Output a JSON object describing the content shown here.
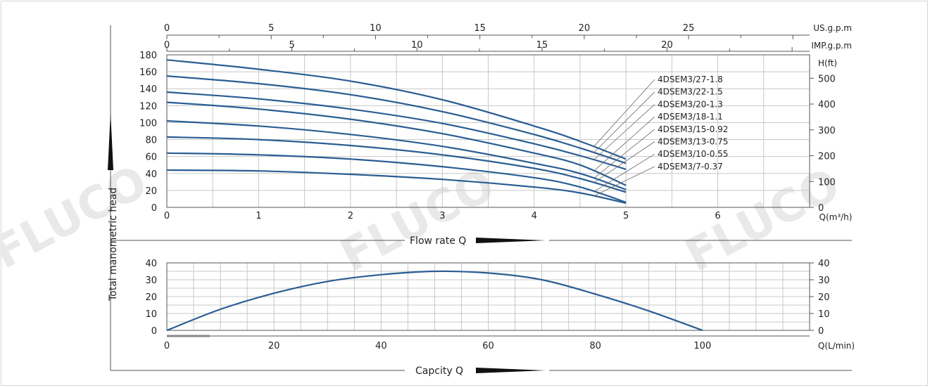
{
  "chart_data": [
    {
      "type": "line",
      "name": "head-curves",
      "x_axis": {
        "label": "Q(m³/h)",
        "ticks": [
          "0",
          "1",
          "2",
          "3",
          "4",
          "5",
          "6"
        ],
        "range": [
          0,
          7
        ]
      },
      "x_top_us": {
        "label": "US.g.p.m",
        "ticks": [
          "0",
          "5",
          "10",
          "15",
          "20",
          "25"
        ],
        "range": [
          0,
          30.8
        ]
      },
      "x_top_imp": {
        "label": "IMP.g.p.m",
        "ticks": [
          "0",
          "5",
          "10",
          "15",
          "20"
        ],
        "range": [
          0,
          25.7
        ]
      },
      "y_axis": {
        "label": "Total manometric head",
        "ticks": [
          "0",
          "20",
          "40",
          "60",
          "80",
          "100",
          "120",
          "140",
          "160",
          "180"
        ],
        "range": [
          0,
          180
        ]
      },
      "y_right": {
        "label": "H(ft)",
        "ticks": [
          "0",
          "100",
          "200",
          "300",
          "400",
          "500"
        ],
        "range": [
          0,
          590.6
        ]
      },
      "series": [
        {
          "name": "4DSEM3/27-1.8",
          "x": [
            0,
            1,
            2,
            3,
            4,
            4.5,
            5
          ],
          "y": [
            174,
            163,
            149,
            127,
            96,
            78,
            57
          ]
        },
        {
          "name": "4DSEM3/22-1.5",
          "x": [
            0,
            1,
            2,
            3,
            4,
            4.5,
            5
          ],
          "y": [
            155,
            146,
            133,
            113,
            86,
            70,
            52
          ]
        },
        {
          "name": "4DSEM3/20-1.3",
          "x": [
            0,
            1,
            2,
            3,
            4,
            4.5,
            5
          ],
          "y": [
            136,
            128,
            116,
            99,
            75,
            61,
            45
          ]
        },
        {
          "name": "4DSEM3/18-1.1",
          "x": [
            0,
            1,
            2,
            3,
            4,
            4.5,
            5
          ],
          "y": [
            124,
            116,
            104,
            87,
            64,
            50,
            26
          ]
        },
        {
          "name": "4DSEM3/15-0.92",
          "x": [
            0,
            1,
            2,
            3,
            4,
            4.5,
            5
          ],
          "y": [
            102,
            96,
            86,
            72,
            52,
            40,
            21
          ]
        },
        {
          "name": "4DSEM3/13-0.75",
          "x": [
            0,
            1,
            2,
            3,
            4,
            4.5,
            5
          ],
          "y": [
            83,
            80,
            73,
            62,
            46,
            34,
            18
          ]
        },
        {
          "name": "4DSEM3/10-0.55",
          "x": [
            0,
            1,
            2,
            3,
            4,
            4.5,
            5
          ],
          "y": [
            64,
            62,
            57,
            48,
            35,
            24,
            6
          ]
        },
        {
          "name": "4DSEM3/7-0.37",
          "x": [
            0,
            1,
            2,
            3,
            4,
            4.5,
            5
          ],
          "y": [
            44,
            43,
            39,
            33,
            24,
            17,
            5
          ]
        }
      ]
    },
    {
      "type": "line",
      "name": "efficiency-curve",
      "x_axis": {
        "label": "Q(L/min)",
        "ticks": [
          "0",
          "20",
          "40",
          "60",
          "80",
          "100"
        ],
        "range": [
          0,
          120
        ]
      },
      "y_axis": {
        "ticks": [
          "0",
          "10",
          "20",
          "30",
          "40"
        ],
        "range": [
          0,
          40
        ]
      },
      "y_right": {
        "ticks": [
          "0",
          "10",
          "20",
          "30",
          "40"
        ],
        "range": [
          0,
          40
        ]
      },
      "series": [
        {
          "x": [
            0,
            10,
            20,
            30,
            40,
            50,
            60,
            70,
            80,
            90,
            100
          ],
          "y": [
            0,
            12.5,
            22,
            29,
            33,
            35,
            34,
            30,
            21.5,
            11.5,
            0
          ]
        }
      ]
    }
  ],
  "captions": {
    "flow_rate": "Flow rate Q",
    "capacity": "Capcity Q",
    "vertical": "Total manometric head"
  },
  "watermark": "FLUCO",
  "colors": {
    "curve": "#2a5d93",
    "grid": "#c8c8c8",
    "text": "#222222"
  }
}
